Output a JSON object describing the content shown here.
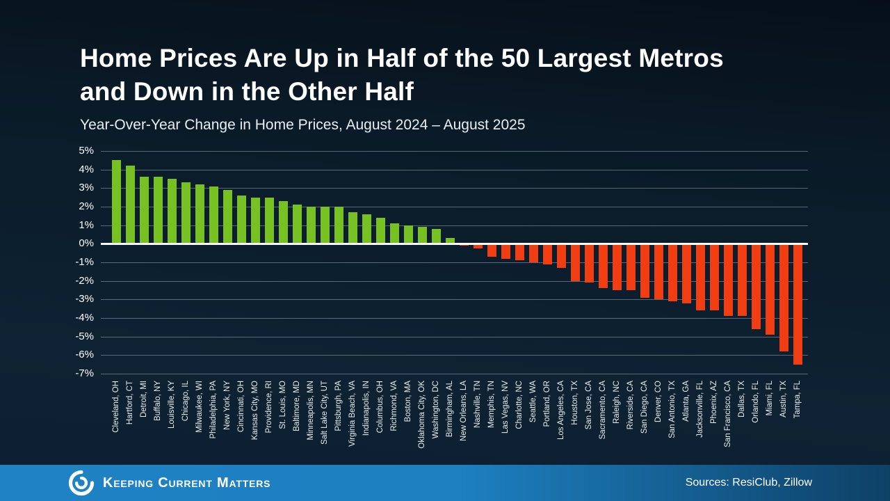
{
  "slide": {
    "title_line1": "Home Prices Are Up in Half of the 50 Largest Metros",
    "title_line2": "and Down in the Other Half",
    "subtitle": "Year-Over-Year Change in Home Prices, August 2024 – August 2025"
  },
  "chart_data": {
    "type": "bar",
    "title": "Home Prices Are Up in Half of the 50 Largest Metros and Down in the Other Half",
    "subtitle": "Year-Over-Year Change in Home Prices, August 2024 – August 2025",
    "xlabel": "",
    "ylabel": "",
    "ylim": [
      -7,
      5
    ],
    "ytick_labels": [
      "5%",
      "4%",
      "3%",
      "2%",
      "1%",
      "0%",
      "-1%",
      "-2%",
      "-3%",
      "-4%",
      "-5%",
      "-6%",
      "-7%"
    ],
    "grid": true,
    "legend": "none",
    "positive_color": "#77c122",
    "negative_color": "#f03d11",
    "categories": [
      "Cleveland, OH",
      "Hartford, CT",
      "Detroit, MI",
      "Buffalo, NY",
      "Louisville, KY",
      "Chicago, IL",
      "Milwaukee, WI",
      "Philadelphia, PA",
      "New York, NY",
      "Cincinnati, OH",
      "Kansas City, MO",
      "Providence, RI",
      "St. Louis, MO",
      "Baltimore, MD",
      "Minneapolis, MN",
      "Salt Lake City, UT",
      "Pittsburgh, PA",
      "Virginia Beach, VA",
      "Indianapolis, IN",
      "Columbus, OH",
      "Richmond, VA",
      "Boston, MA",
      "Oklahoma City, OK",
      "Washington, DC",
      "Birmingham, AL",
      "New Orleans, LA",
      "Nashville, TN",
      "Memphis, TN",
      "Las Vegas, NV",
      "Charlotte, NC",
      "Seattle, WA",
      "Portland, OR",
      "Los Angeles, CA",
      "Houston, TX",
      "San Jose, CA",
      "Sacramento, CA",
      "Raleigh, NC",
      "Riverside, CA",
      "San Diego, CA",
      "Denver, CO",
      "San Antonio, TX",
      "Atlanta, GA",
      "Jacksonville, FL",
      "Phoenix, AZ",
      "San Francisco, CA",
      "Dallas, TX",
      "Orlando, FL",
      "Miami, FL",
      "Austin, TX",
      "Tampa, FL"
    ],
    "values": [
      4.5,
      4.2,
      3.6,
      3.6,
      3.5,
      3.3,
      3.2,
      3.1,
      2.9,
      2.6,
      2.5,
      2.5,
      2.3,
      2.1,
      2.0,
      2.0,
      2.0,
      1.7,
      1.6,
      1.4,
      1.1,
      1.0,
      0.9,
      0.8,
      0.3,
      -0.1,
      -0.25,
      -0.7,
      -0.8,
      -0.9,
      -1.0,
      -1.1,
      -1.3,
      -2.0,
      -2.1,
      -2.4,
      -2.5,
      -2.5,
      -2.9,
      -3.0,
      -3.1,
      -3.2,
      -3.6,
      -3.6,
      -3.9,
      -3.9,
      -4.6,
      -4.9,
      -5.8,
      -6.5
    ]
  },
  "footer": {
    "brand": "Keeping Current Matters",
    "logo_icon": "swirl-logo-icon",
    "sources": "Sources: ResiClub, Zillow"
  }
}
